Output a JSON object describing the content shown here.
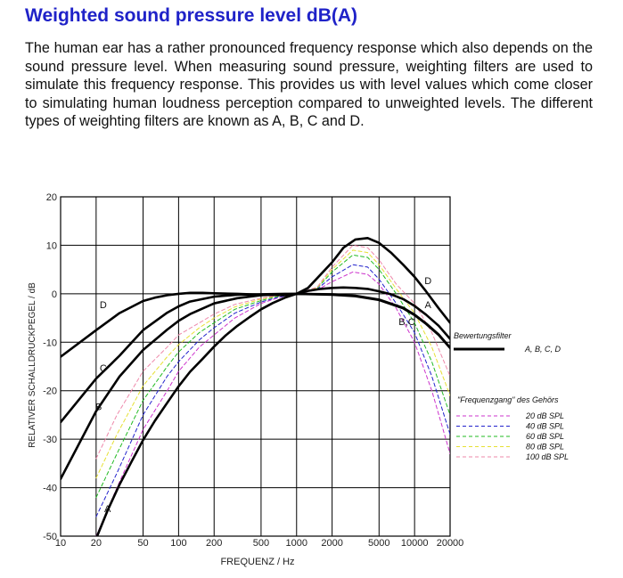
{
  "page": {
    "title": "Weighted sound pressure level dB(A)",
    "intro": "The human ear has a rather pronounced frequency response which also depends on the sound pressure level. When measuring sound pressure, weighting filters are used to simulate this frequency response. This provides us with level values which come closer to simulating human loudness perception compared to unweighted levels. The different types of weighting filters are known as A, B, C and D."
  },
  "chart_data": {
    "type": "line",
    "xlabel": "FREQUENZ / Hz",
    "ylabel": "RELATIVER SCHALLDRUCKPEGEL / dB",
    "xscale": "log",
    "xlim": [
      10,
      20000
    ],
    "ylim": [
      -50,
      20
    ],
    "x_ticks": [
      10,
      20,
      50,
      100,
      200,
      500,
      1000,
      2000,
      5000,
      10000,
      20000
    ],
    "y_ticks": [
      20,
      10,
      0,
      -10,
      -20,
      -30,
      -40,
      -50
    ],
    "grid": true,
    "filter_legend_title": "Bewertungsfilter",
    "filter_legend_label": "A, B, C, D",
    "hearing_legend_title": "\"Frequenzgang\" des Gehörs",
    "series": [
      {
        "name": "A",
        "style": "solid",
        "color": "#000000",
        "x": [
          20,
          25,
          31.5,
          40,
          50,
          63,
          80,
          100,
          125,
          160,
          200,
          250,
          315,
          400,
          500,
          630,
          800,
          1000,
          1250,
          1600,
          2000,
          2500,
          3150,
          4000,
          5000,
          6300,
          8000,
          10000,
          12500,
          16000,
          20000
        ],
        "y": [
          -50.5,
          -44.7,
          -39.4,
          -34.6,
          -30.2,
          -26.2,
          -22.5,
          -19.1,
          -16.1,
          -13.4,
          -10.9,
          -8.6,
          -6.6,
          -4.8,
          -3.2,
          -1.9,
          -0.8,
          0,
          0.6,
          1.0,
          1.2,
          1.3,
          1.2,
          1.0,
          0.5,
          -0.1,
          -1.1,
          -2.5,
          -4.3,
          -6.6,
          -9.3
        ]
      },
      {
        "name": "B",
        "style": "solid",
        "color": "#000000",
        "x": [
          10,
          20,
          31.5,
          50,
          80,
          100,
          125,
          200,
          315,
          500,
          800,
          1000,
          2000,
          3150,
          5000,
          8000,
          10000,
          12500,
          16000,
          20000
        ],
        "y": [
          -38.2,
          -24.2,
          -17.1,
          -11.6,
          -7.4,
          -5.6,
          -4.2,
          -2.0,
          -0.9,
          -0.3,
          -0.1,
          0,
          -0.1,
          -0.4,
          -1.2,
          -2.9,
          -4.3,
          -6.1,
          -8.4,
          -11.1
        ]
      },
      {
        "name": "C",
        "style": "solid",
        "color": "#000000",
        "x": [
          10,
          20,
          31.5,
          50,
          80,
          100,
          125,
          200,
          315,
          500,
          800,
          1000,
          2000,
          3150,
          5000,
          8000,
          10000,
          12500,
          16000,
          20000
        ],
        "y": [
          -26.5,
          -17.5,
          -12.8,
          -7.5,
          -3.9,
          -2.6,
          -1.6,
          -0.6,
          -0.2,
          -0.1,
          0,
          0,
          -0.2,
          -0.5,
          -1.3,
          -3.0,
          -4.4,
          -6.2,
          -8.5,
          -11.2
        ]
      },
      {
        "name": "D",
        "style": "solid",
        "color": "#000000",
        "x": [
          10,
          20,
          31.5,
          50,
          63,
          80,
          100,
          125,
          160,
          200,
          315,
          500,
          800,
          1000,
          1250,
          2000,
          2500,
          3150,
          4000,
          5000,
          6300,
          8000,
          10000,
          12500,
          16000,
          20000
        ],
        "y": [
          -13.0,
          -7.5,
          -4.0,
          -1.5,
          -0.8,
          -0.3,
          0,
          0.2,
          0.2,
          0.1,
          0,
          -0.2,
          -0.3,
          0,
          1.2,
          6.5,
          9.5,
          11.2,
          11.5,
          10.5,
          8.5,
          6.0,
          3.5,
          0.5,
          -3.0,
          -6.0
        ]
      },
      {
        "name": "20 dB SPL",
        "style": "dashed",
        "color": "#cc33cc",
        "x": [
          20,
          30,
          50,
          80,
          100,
          150,
          200,
          300,
          500,
          700,
          1000,
          1500,
          2000,
          3000,
          4000,
          5000,
          7000,
          10000,
          14000,
          20000
        ],
        "y": [
          -50,
          -40,
          -28,
          -20,
          -16,
          -11,
          -8.5,
          -5,
          -2,
          -0.8,
          0,
          0.8,
          2.5,
          4.5,
          4.0,
          2.0,
          -3,
          -10,
          -20,
          -33
        ]
      },
      {
        "name": "40 dB SPL",
        "style": "dashed",
        "color": "#2222cc",
        "x": [
          20,
          30,
          50,
          80,
          100,
          150,
          200,
          300,
          500,
          700,
          1000,
          1500,
          2000,
          3000,
          4000,
          5000,
          7000,
          10000,
          14000,
          20000
        ],
        "y": [
          -46,
          -37,
          -25,
          -17,
          -14,
          -9.5,
          -7,
          -4,
          -1.7,
          -0.7,
          0,
          1.0,
          3.5,
          6.0,
          5.5,
          3.0,
          -2,
          -8,
          -17,
          -29
        ]
      },
      {
        "name": "60 dB SPL",
        "style": "dashed",
        "color": "#22bb22",
        "x": [
          20,
          30,
          50,
          80,
          100,
          150,
          200,
          300,
          500,
          700,
          1000,
          1500,
          2000,
          3000,
          4000,
          5000,
          7000,
          10000,
          14000,
          20000
        ],
        "y": [
          -42,
          -33,
          -22,
          -15,
          -12,
          -8,
          -6,
          -3.2,
          -1.4,
          -0.5,
          0,
          1.2,
          4.5,
          8.0,
          7.5,
          5.0,
          0,
          -6,
          -14,
          -25
        ]
      },
      {
        "name": "80 dB SPL",
        "style": "dashed",
        "color": "#e6e033",
        "x": [
          20,
          30,
          50,
          80,
          100,
          150,
          200,
          300,
          500,
          700,
          1000,
          1500,
          2000,
          3000,
          4000,
          5000,
          7000,
          10000,
          14000,
          20000
        ],
        "y": [
          -38,
          -29,
          -19,
          -13,
          -10.5,
          -7,
          -5,
          -2.7,
          -1.1,
          -0.4,
          0,
          1.3,
          5.0,
          9.0,
          8.5,
          6.0,
          1,
          -4,
          -11,
          -21
        ]
      },
      {
        "name": "100 dB SPL",
        "style": "dashed",
        "color": "#ee88aa",
        "x": [
          20,
          30,
          50,
          80,
          100,
          150,
          200,
          300,
          500,
          700,
          1000,
          1500,
          2000,
          3000,
          4000,
          5000,
          7000,
          10000,
          14000,
          20000
        ],
        "y": [
          -34,
          -25,
          -16,
          -11,
          -8.5,
          -6,
          -4.2,
          -2.2,
          -0.9,
          -0.3,
          0,
          1.4,
          5.5,
          10.0,
          9.5,
          7.0,
          2,
          -2,
          -8,
          -17
        ]
      }
    ],
    "annotations": [
      {
        "text": "A",
        "x": 25,
        "y": -45
      },
      {
        "text": "B",
        "x": 21,
        "y": -24
      },
      {
        "text": "C",
        "x": 23,
        "y": -16
      },
      {
        "text": "D",
        "x": 23,
        "y": -3
      },
      {
        "text": "B,C",
        "x": 8600,
        "y": -6.5
      },
      {
        "text": "A",
        "x": 13000,
        "y": -3
      },
      {
        "text": "D",
        "x": 13000,
        "y": 2
      }
    ]
  }
}
